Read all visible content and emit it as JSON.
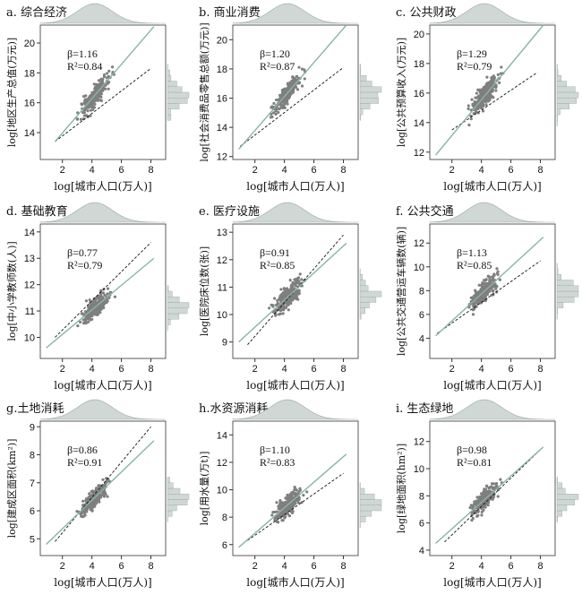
{
  "chart_data": [
    {
      "id": "a",
      "type": "scatter",
      "title": "a. 综合经济",
      "xlabel": "log[城市人口(万人)]",
      "ylabel": "log[地区生产总值(万元)]",
      "xlim": [
        0.5,
        9
      ],
      "ylim": [
        12.2,
        21.2
      ],
      "xticks": [
        2,
        4,
        6,
        8
      ],
      "yticks": [
        14,
        16,
        18,
        20
      ],
      "beta_text": "β=1.16",
      "r2_text": "R²=0.84",
      "beta": 1.16,
      "r2": 0.84,
      "fit_line": {
        "x1": 1.5,
        "y1": 13.4,
        "x2": 8.2,
        "y2": 21.1
      },
      "ref_line": {
        "x1": 1.5,
        "y1": 13.4,
        "x2": 8.0,
        "y2": 18.3
      },
      "center": [
        4.2,
        16.2
      ],
      "spread": 0.55
    },
    {
      "id": "b",
      "type": "scatter",
      "title": "b. 商业消费",
      "xlabel": "log[城市人口(万人)]",
      "ylabel": "log[社会消费品零售总额(万元)]",
      "xlim": [
        0.5,
        9
      ],
      "ylim": [
        11.8,
        21.0
      ],
      "xticks": [
        2,
        4,
        6,
        8
      ],
      "yticks": [
        12,
        14,
        16,
        18,
        20
      ],
      "beta_text": "β=1.20",
      "r2_text": "R²=0.87",
      "beta": 1.2,
      "r2": 0.87,
      "fit_line": {
        "x1": 0.9,
        "y1": 12.5,
        "x2": 8.2,
        "y2": 21.0
      },
      "ref_line": {
        "x1": 1.0,
        "y1": 12.7,
        "x2": 8.0,
        "y2": 18.1
      },
      "center": [
        4.2,
        15.7
      ],
      "spread": 0.5
    },
    {
      "id": "c",
      "type": "scatter",
      "title": "c. 公共财政",
      "xlabel": "log[城市人口(万人)]",
      "ylabel": "log[公共预算收入(万元)]",
      "xlim": [
        0.5,
        9
      ],
      "ylim": [
        11.5,
        20.6
      ],
      "xticks": [
        2,
        4,
        6,
        8
      ],
      "yticks": [
        12,
        14,
        16,
        18,
        20
      ],
      "beta_text": "β=1.29",
      "r2_text": "R²=0.79",
      "beta": 1.29,
      "r2": 0.79,
      "fit_line": {
        "x1": 0.9,
        "y1": 11.8,
        "x2": 8.2,
        "y2": 20.6
      },
      "ref_line": {
        "x1": 2.0,
        "y1": 13.5,
        "x2": 7.8,
        "y2": 17.4
      },
      "center": [
        4.2,
        14.9
      ],
      "spread": 0.65
    },
    {
      "id": "d",
      "type": "scatter",
      "title": "d. 基础教育",
      "xlabel": "log[城市人口(万人)]",
      "ylabel": "log[中小学教师数(人)]",
      "xlim": [
        0.5,
        9
      ],
      "ylim": [
        9.2,
        14.3
      ],
      "xticks": [
        2,
        4,
        6,
        8
      ],
      "yticks": [
        10,
        11,
        12,
        13,
        14
      ],
      "beta_text": "β=0.77",
      "r2_text": "R²=0.79",
      "beta": 0.77,
      "r2": 0.79,
      "fit_line": {
        "x1": 0.9,
        "y1": 9.6,
        "x2": 8.2,
        "y2": 13.0
      },
      "ref_line": {
        "x1": 1.5,
        "y1": 10.0,
        "x2": 8.0,
        "y2": 13.6
      },
      "center": [
        4.2,
        11.4
      ],
      "spread": 0.3
    },
    {
      "id": "e",
      "type": "scatter",
      "title": "e. 医疗设施",
      "xlabel": "log[城市人口(万人)]",
      "ylabel": "log[医院床位数(张)]",
      "xlim": [
        0.5,
        9
      ],
      "ylim": [
        8.4,
        13.3
      ],
      "xticks": [
        2,
        4,
        6,
        8
      ],
      "yticks": [
        9,
        10,
        11,
        12,
        13
      ],
      "beta_text": "β=0.91",
      "r2_text": "R²=0.85",
      "beta": 0.91,
      "r2": 0.85,
      "fit_line": {
        "x1": 0.9,
        "y1": 9.0,
        "x2": 8.2,
        "y2": 12.6
      },
      "ref_line": {
        "x1": 1.5,
        "y1": 8.9,
        "x2": 8.0,
        "y2": 12.9
      },
      "center": [
        4.2,
        10.6
      ],
      "spread": 0.35
    },
    {
      "id": "f",
      "type": "scatter",
      "title": "f. 公共交通",
      "xlabel": "log[城市人口(万人)]",
      "ylabel": "log[公共交通营运车辆数(辆)]",
      "xlim": [
        0.5,
        9
      ],
      "ylim": [
        2.3,
        13.6
      ],
      "xticks": [
        2,
        4,
        6,
        8
      ],
      "yticks": [
        4,
        6,
        8,
        10,
        12
      ],
      "beta_text": "β=1.13",
      "r2_text": "R²=0.85",
      "beta": 1.13,
      "r2": 0.85,
      "fit_line": {
        "x1": 0.9,
        "y1": 4.2,
        "x2": 8.2,
        "y2": 12.5
      },
      "ref_line": {
        "x1": 1.0,
        "y1": 4.4,
        "x2": 8.0,
        "y2": 10.5
      },
      "center": [
        4.2,
        7.2
      ],
      "spread": 0.7
    },
    {
      "id": "g",
      "type": "scatter",
      "title": "g.土地消耗",
      "xlabel": "log[城市人口(万人)]",
      "ylabel": "log[建成区面积(km²)]",
      "xlim": [
        0.5,
        9
      ],
      "ylim": [
        4.4,
        9.2
      ],
      "xticks": [
        2,
        4,
        6,
        8
      ],
      "yticks": [
        5,
        6,
        7,
        8,
        9
      ],
      "beta_text": "β=0.86",
      "r2_text": "R²=0.91",
      "beta": 0.86,
      "r2": 0.91,
      "fit_line": {
        "x1": 0.9,
        "y1": 4.8,
        "x2": 8.2,
        "y2": 8.5
      },
      "ref_line": {
        "x1": 1.5,
        "y1": 4.9,
        "x2": 8.0,
        "y2": 9.0
      },
      "center": [
        4.2,
        6.3
      ],
      "spread": 0.25
    },
    {
      "id": "h",
      "type": "scatter",
      "title": "h.水资源消耗",
      "xlabel": "log[城市人口(万人)]",
      "ylabel": "log[用水量(万t)]",
      "xlim": [
        0.5,
        9
      ],
      "ylim": [
        5.2,
        15.0
      ],
      "xticks": [
        2,
        4,
        6,
        8
      ],
      "yticks": [
        6,
        8,
        10,
        12,
        14
      ],
      "beta_text": "β=1.10",
      "r2_text": "R²=0.83",
      "beta": 1.1,
      "r2": 0.83,
      "fit_line": {
        "x1": 0.9,
        "y1": 5.8,
        "x2": 8.2,
        "y2": 12.6
      },
      "ref_line": {
        "x1": 1.5,
        "y1": 6.3,
        "x2": 8.0,
        "y2": 11.2
      },
      "center": [
        4.2,
        8.8
      ],
      "spread": 0.6
    },
    {
      "id": "i",
      "type": "scatter",
      "title": "i. 生态绿地",
      "xlabel": "log[城市人口(万人)]",
      "ylabel": "log[绿地面积(hm²)]",
      "xlim": [
        0.5,
        9
      ],
      "ylim": [
        3.6,
        13.5
      ],
      "xticks": [
        2,
        4,
        6,
        8
      ],
      "yticks": [
        4,
        6,
        8,
        10,
        12
      ],
      "beta_text": "β=0.98",
      "r2_text": "R²=0.81",
      "beta": 0.98,
      "r2": 0.81,
      "fit_line": {
        "x1": 0.9,
        "y1": 4.5,
        "x2": 8.2,
        "y2": 11.6
      },
      "ref_line": {
        "x1": 1.5,
        "y1": 4.6,
        "x2": 8.0,
        "y2": 11.4
      },
      "center": [
        4.2,
        7.6
      ],
      "spread": 0.55
    }
  ],
  "colors": {
    "points": "#7f7f7f",
    "fit_line": "#86b5a6",
    "ref_line": "#111111",
    "hist": "#cfd8d4",
    "hist_stroke": "#9aa7a2"
  }
}
